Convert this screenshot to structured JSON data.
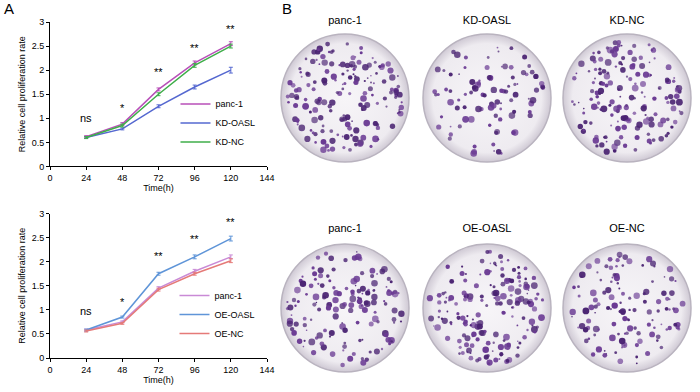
{
  "chart_data": [
    {
      "type": "line",
      "x_label": "Time(h)",
      "y_label": "Relative cell proliferation rate",
      "x": [
        24,
        48,
        72,
        96,
        120
      ],
      "xlim": [
        0,
        144
      ],
      "xticks": [
        0,
        24,
        48,
        72,
        96,
        120,
        144
      ],
      "ylim": [
        0,
        3
      ],
      "yticks": [
        0,
        0.5,
        1,
        1.5,
        2,
        2.5,
        3
      ],
      "grid": false,
      "legend": "lower right",
      "series": [
        {
          "name": "panc-1",
          "color": "#b84fb8",
          "values": [
            0.62,
            0.88,
            1.6,
            2.15,
            2.55
          ],
          "errors": [
            0.02,
            0.03,
            0.03,
            0.04,
            0.04
          ]
        },
        {
          "name": "KD-OASL",
          "color": "#5568d0",
          "values": [
            0.6,
            0.78,
            1.25,
            1.65,
            2.0
          ],
          "errors": [
            0.02,
            0.02,
            0.03,
            0.04,
            0.06
          ]
        },
        {
          "name": "KD-NC",
          "color": "#3fae4a",
          "values": [
            0.6,
            0.85,
            1.5,
            2.1,
            2.5
          ],
          "errors": [
            0.02,
            0.03,
            0.03,
            0.04,
            0.04
          ]
        }
      ],
      "annotations": [
        {
          "x": 24,
          "y": 0.85,
          "text": "ns"
        },
        {
          "x": 48,
          "y": 1.05,
          "text": "*"
        },
        {
          "x": 72,
          "y": 1.8,
          "text": "**"
        },
        {
          "x": 96,
          "y": 2.3,
          "text": "**"
        },
        {
          "x": 120,
          "y": 2.68,
          "text": "**"
        }
      ]
    },
    {
      "type": "line",
      "x_label": "Time(h)",
      "y_label": "Relative cell proliferation rate",
      "x": [
        24,
        48,
        72,
        96,
        120
      ],
      "xlim": [
        0,
        144
      ],
      "xticks": [
        0,
        24,
        48,
        72,
        96,
        120,
        144
      ],
      "ylim": [
        0,
        3
      ],
      "yticks": [
        0,
        0.5,
        1,
        1.5,
        2,
        2.5,
        3
      ],
      "grid": false,
      "legend": "lower right",
      "series": [
        {
          "name": "panc-1",
          "color": "#c98ad6",
          "values": [
            0.58,
            0.75,
            1.45,
            1.8,
            2.1
          ],
          "errors": [
            0.02,
            0.02,
            0.03,
            0.04,
            0.04
          ]
        },
        {
          "name": "OE-OASL",
          "color": "#5f95d8",
          "values": [
            0.58,
            0.85,
            1.75,
            2.1,
            2.48
          ],
          "errors": [
            0.02,
            0.02,
            0.03,
            0.04,
            0.05
          ]
        },
        {
          "name": "OE-NC",
          "color": "#e57a78",
          "values": [
            0.56,
            0.72,
            1.42,
            1.75,
            2.02
          ],
          "errors": [
            0.02,
            0.02,
            0.03,
            0.03,
            0.04
          ]
        }
      ],
      "annotations": [
        {
          "x": 24,
          "y": 0.8,
          "text": "ns"
        },
        {
          "x": 48,
          "y": 1.0,
          "text": "*"
        },
        {
          "x": 72,
          "y": 1.95,
          "text": "**"
        },
        {
          "x": 96,
          "y": 2.3,
          "text": "**"
        },
        {
          "x": 120,
          "y": 2.65,
          "text": "**"
        }
      ]
    }
  ],
  "panel_labels": [
    "A",
    "B"
  ],
  "colony_plates": [
    [
      "panc-1",
      "KD-OASL",
      "KD-NC"
    ],
    [
      "panc-1",
      "OE-OASL",
      "OE-NC"
    ]
  ]
}
